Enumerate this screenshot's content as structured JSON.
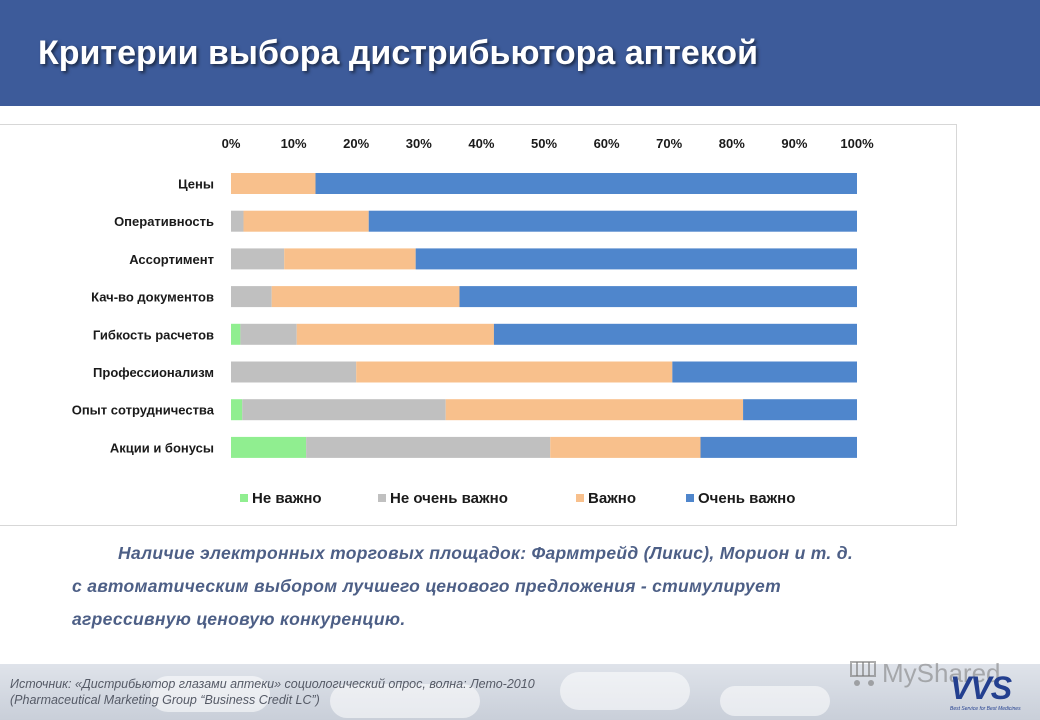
{
  "header": {
    "title": "Критерии выбора дистрибьютора аптекой"
  },
  "colors": {
    "header_bg": "#3d5b9a",
    "series": [
      "#90ee90",
      "#c0c0c0",
      "#f8c08c",
      "#4f86cc"
    ]
  },
  "chart_data": {
    "type": "bar",
    "orientation": "horizontal",
    "stacked": "percent",
    "categories": [
      "Цены",
      "Оперативность",
      "Ассортимент",
      "Кач-во документов",
      "Гибкость расчетов",
      "Профессионализм",
      "Опыт сотрудничества",
      "Акции и бонусы"
    ],
    "series": [
      {
        "name": "Не важно",
        "values": [
          0,
          0,
          0,
          0,
          1.5,
          0,
          1.8,
          12
        ]
      },
      {
        "name": "Не очень важно",
        "values": [
          0,
          2,
          8.5,
          6.5,
          9,
          20,
          32.5,
          39
        ]
      },
      {
        "name": "Важно",
        "values": [
          13.5,
          20,
          21,
          30,
          31.5,
          50.5,
          47.5,
          24
        ]
      },
      {
        "name": "Очень важно",
        "values": [
          86.5,
          78,
          70.5,
          63.5,
          58,
          29.5,
          18.2,
          25
        ]
      }
    ],
    "xlim": [
      0,
      100
    ],
    "xticks": [
      "0%",
      "10%",
      "20%",
      "30%",
      "40%",
      "50%",
      "60%",
      "70%",
      "80%",
      "90%",
      "100%"
    ],
    "x_axis_position": "top",
    "grid": false,
    "legend_position": "bottom"
  },
  "note": {
    "line1": "Наличие электронных торговых площадок: Фармтрейд (Ликис), Морион и т. д.",
    "line2": "с автоматическим выбором лучшего ценового предложения  - стимулирует",
    "line3": "агрессивную ценовую конкуренцию."
  },
  "source": {
    "line1": "Источник: «Дистрибьютор глазами аптеки» социологический опрос, волна: Лето-2010",
    "line2": "(Pharmaceutical Marketing Group “Business Credit LC”)"
  },
  "watermark": {
    "text": "MyShared"
  },
  "logo": {
    "name": "VVS",
    "tagline": "Best Service for Best Medicines"
  }
}
